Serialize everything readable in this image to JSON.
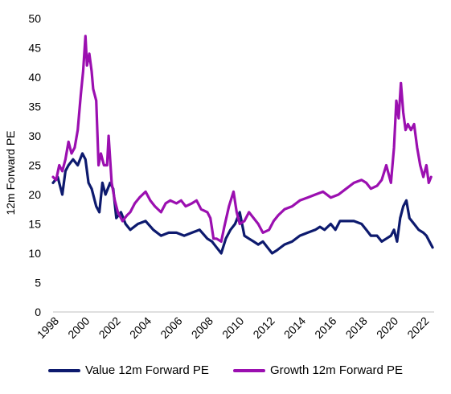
{
  "chart_data": {
    "type": "line",
    "title": "",
    "xlabel": "",
    "ylabel": "12m Forward PE",
    "xlim": [
      1998,
      2022.7
    ],
    "ylim": [
      0,
      50
    ],
    "yticks": [
      0,
      5,
      10,
      15,
      20,
      25,
      30,
      35,
      40,
      45,
      50
    ],
    "xticks": [
      "1998",
      "2000",
      "2002",
      "2004",
      "2006",
      "2008",
      "2010",
      "2012",
      "2014",
      "2016",
      "2018",
      "2020",
      "2022"
    ],
    "grid": false,
    "legend_position": "bottom",
    "series": [
      {
        "name": "Value 12m Forward PE",
        "color": "#0d1a6e",
        "x": [
          1998.0,
          1998.3,
          1998.6,
          1998.8,
          1999.0,
          1999.3,
          1999.6,
          1999.9,
          2000.1,
          2000.3,
          2000.5,
          2000.8,
          2001.0,
          2001.2,
          2001.4,
          2001.7,
          2001.9,
          2002.1,
          2002.4,
          2002.7,
          2003.0,
          2003.5,
          2004.0,
          2004.5,
          2005.0,
          2005.5,
          2006.0,
          2006.5,
          2007.0,
          2007.5,
          2008.0,
          2008.3,
          2008.6,
          2008.9,
          2009.2,
          2009.5,
          2009.8,
          2010.1,
          2010.4,
          2010.7,
          2011.0,
          2011.3,
          2011.6,
          2011.9,
          2012.2,
          2012.5,
          2013.0,
          2013.5,
          2014.0,
          2014.5,
          2015.0,
          2015.3,
          2015.6,
          2016.0,
          2016.3,
          2016.6,
          2017.0,
          2017.5,
          2018.0,
          2018.3,
          2018.6,
          2019.0,
          2019.3,
          2019.6,
          2019.9,
          2020.1,
          2020.3,
          2020.5,
          2020.7,
          2020.9,
          2021.1,
          2021.4,
          2021.7,
          2022.0,
          2022.2,
          2022.4,
          2022.6
        ],
        "values": [
          22,
          23,
          20,
          24,
          25,
          26,
          25,
          27,
          26,
          22,
          21,
          18,
          17,
          22,
          20,
          22,
          21,
          16,
          17,
          15,
          14,
          15,
          15.5,
          14,
          13,
          13.5,
          13.5,
          13,
          13.5,
          14,
          12.5,
          12,
          11,
          10,
          12.5,
          14,
          15,
          17,
          13,
          12.5,
          12,
          11.5,
          12,
          11,
          10,
          10.5,
          11.5,
          12,
          13,
          13.5,
          14,
          14.5,
          14,
          15,
          14,
          15.5,
          15.5,
          15.5,
          15,
          14,
          13,
          13,
          12,
          12.5,
          13,
          14,
          12,
          16,
          18,
          19,
          16,
          15,
          14,
          13.5,
          13,
          12,
          11
        ]
      },
      {
        "name": "Growth 12m Forward PE",
        "color": "#9b0fb0",
        "x": [
          1998.0,
          1998.2,
          1998.4,
          1998.6,
          1998.8,
          1999.0,
          1999.2,
          1999.4,
          1999.6,
          1999.8,
          1999.95,
          2000.1,
          2000.2,
          2000.35,
          2000.5,
          2000.6,
          2000.8,
          2000.95,
          2001.1,
          2001.3,
          2001.5,
          2001.6,
          2001.8,
          2002.0,
          2002.2,
          2002.5,
          2002.8,
          2003.0,
          2003.3,
          2003.6,
          2004.0,
          2004.3,
          2004.6,
          2005.0,
          2005.3,
          2005.6,
          2006.0,
          2006.3,
          2006.6,
          2007.0,
          2007.3,
          2007.6,
          2008.0,
          2008.2,
          2008.4,
          2008.6,
          2008.9,
          2009.1,
          2009.4,
          2009.7,
          2009.9,
          2010.1,
          2010.4,
          2010.7,
          2011.0,
          2011.3,
          2011.6,
          2012.0,
          2012.3,
          2012.6,
          2013.0,
          2013.5,
          2014.0,
          2014.5,
          2015.0,
          2015.5,
          2016.0,
          2016.5,
          2017.0,
          2017.5,
          2018.0,
          2018.3,
          2018.6,
          2019.0,
          2019.3,
          2019.6,
          2019.9,
          2020.1,
          2020.25,
          2020.4,
          2020.55,
          2020.7,
          2020.85,
          2021.0,
          2021.2,
          2021.4,
          2021.6,
          2021.8,
          2022.0,
          2022.2,
          2022.35,
          2022.5
        ],
        "values": [
          23,
          22.5,
          25,
          24,
          26,
          29,
          27,
          28,
          31,
          37,
          41,
          47,
          42,
          44,
          41,
          38,
          36,
          25,
          27,
          25,
          25,
          30,
          22,
          19,
          17,
          15.5,
          16.5,
          17,
          18.5,
          19.5,
          20.5,
          19,
          18,
          17,
          18.5,
          19,
          18.5,
          19,
          18,
          18.5,
          19,
          17.5,
          17,
          16,
          12.5,
          12.5,
          12,
          14.5,
          18,
          20.5,
          17,
          15,
          15.5,
          17,
          16,
          15,
          13.5,
          14,
          15.5,
          16.5,
          17.5,
          18,
          19,
          19.5,
          20,
          20.5,
          19.5,
          20,
          21,
          22,
          22.5,
          22,
          21,
          21.5,
          22.5,
          25,
          22,
          28,
          36,
          33,
          39,
          34,
          31,
          32,
          31,
          32,
          28,
          25,
          23,
          25,
          22,
          23
        ]
      }
    ]
  }
}
